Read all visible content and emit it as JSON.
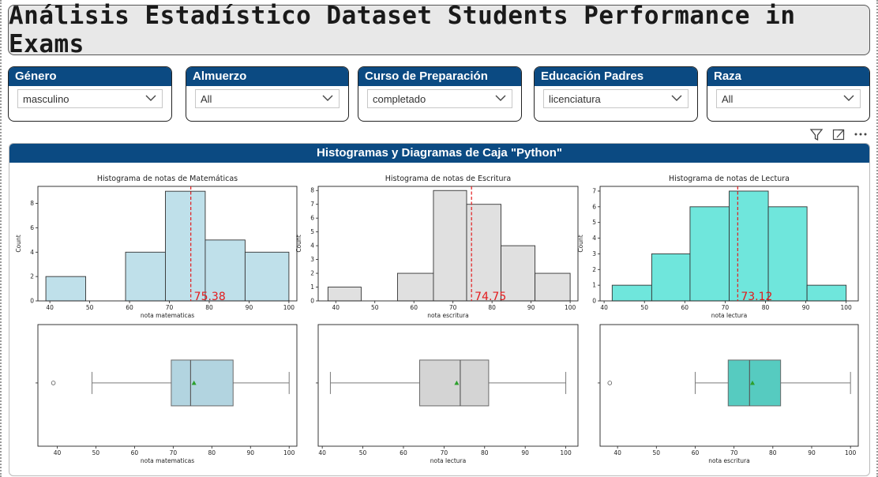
{
  "title": "Análisis Estadístico Dataset Students Performance in Exams",
  "slicers": [
    {
      "label": "Género",
      "value": "masculino"
    },
    {
      "label": "Almuerzo",
      "value": "All"
    },
    {
      "label": "Curso de Preparación",
      "value": "completado"
    },
    {
      "label": "Educación Padres",
      "value": "licenciatura"
    },
    {
      "label": "Raza",
      "value": "All"
    }
  ],
  "toolbar_icons": [
    "filter-icon",
    "focus-mode-icon",
    "more-options-icon"
  ],
  "visual_title": "Histogramas y Diagramas de Caja \"Python\"",
  "colors": {
    "header": "#0b4a82",
    "mean_line": "#e31a1c",
    "mean_marker": "#2ca02c"
  },
  "chart_data": [
    {
      "type": "bar",
      "title": "Histograma de notas de Matemáticas",
      "xlabel": "nota matematicas",
      "ylabel": "Count",
      "bins": [
        [
          39,
          49,
          2
        ],
        [
          59,
          69,
          4
        ],
        [
          69,
          79,
          9
        ],
        [
          79,
          89,
          5
        ],
        [
          89,
          100,
          4
        ]
      ],
      "xlim": [
        37,
        102
      ],
      "ylim": [
        0,
        9.4
      ],
      "xticks": [
        40,
        50,
        60,
        70,
        80,
        90,
        100
      ],
      "yticks": [
        0,
        2,
        4,
        6,
        8
      ],
      "mean": 75.38,
      "mean_label": "75.38",
      "color": "#bfe0ea"
    },
    {
      "type": "bar",
      "title": "Histograma de notas de Escritura",
      "xlabel": "nota escritura",
      "ylabel": "Count",
      "bins": [
        [
          38,
          46.5,
          1
        ],
        [
          55.8,
          65,
          2
        ],
        [
          65,
          73.5,
          8
        ],
        [
          73.5,
          82.3,
          7
        ],
        [
          82.3,
          91,
          4
        ],
        [
          91,
          100,
          2
        ]
      ],
      "xlim": [
        35.5,
        102
      ],
      "ylim": [
        0,
        8.3
      ],
      "xticks": [
        40,
        50,
        60,
        70,
        80,
        90,
        100
      ],
      "yticks": [
        0,
        1,
        2,
        3,
        4,
        5,
        6,
        7,
        8
      ],
      "mean": 74.75,
      "mean_label": "74.75",
      "color": "#e0e0e0"
    },
    {
      "type": "bar",
      "title": "Histograma de notas de Lectura",
      "xlabel": "nota lectura",
      "ylabel": "Count",
      "bins": [
        [
          42,
          51.8,
          1
        ],
        [
          51.8,
          61.3,
          3
        ],
        [
          61.3,
          71,
          6
        ],
        [
          71,
          80.7,
          7
        ],
        [
          80.7,
          90.3,
          6
        ],
        [
          90.3,
          100,
          1
        ]
      ],
      "xlim": [
        39,
        103
      ],
      "ylim": [
        0,
        7.3
      ],
      "xticks": [
        40,
        50,
        60,
        70,
        80,
        90,
        100
      ],
      "yticks": [
        0,
        1,
        2,
        3,
        4,
        5,
        6,
        7
      ],
      "mean": 73.12,
      "mean_label": "73.12",
      "color": "#6fe6dc"
    }
  ],
  "box_data": [
    {
      "type": "box",
      "xlabel": "nota matematicas",
      "xlim": [
        35,
        102
      ],
      "xticks": [
        40,
        50,
        60,
        70,
        80,
        90,
        100
      ],
      "whisker_low": 49,
      "q1": 69.5,
      "median": 74.5,
      "q3": 85.5,
      "whisker_high": 100,
      "mean": 75.38,
      "outliers": [
        39
      ],
      "color": "#b2d4e0"
    },
    {
      "type": "box",
      "xlabel": "nota lectura",
      "xlim": [
        39,
        103
      ],
      "xticks": [
        40,
        50,
        60,
        70,
        80,
        90,
        100
      ],
      "whisker_low": 42,
      "q1": 64,
      "median": 74,
      "q3": 81,
      "whisker_high": 100,
      "mean": 73.12,
      "outliers": [],
      "color": "#d4d4d4"
    },
    {
      "type": "box",
      "xlabel": "nota escritura",
      "xlim": [
        35.5,
        102
      ],
      "xticks": [
        40,
        50,
        60,
        70,
        80,
        90,
        100
      ],
      "whisker_low": 60,
      "q1": 68.5,
      "median": 74,
      "q3": 82,
      "whisker_high": 100,
      "mean": 74.75,
      "outliers": [
        38
      ],
      "color": "#56cbc0"
    }
  ]
}
